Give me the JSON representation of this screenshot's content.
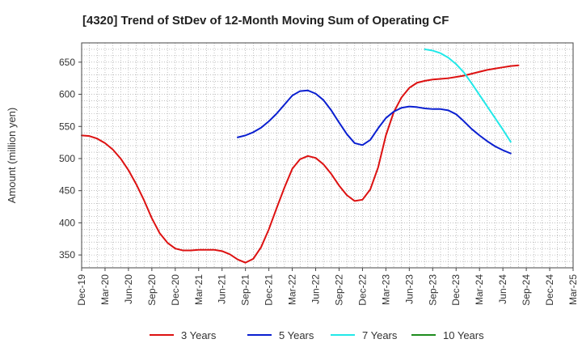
{
  "chart_data": {
    "type": "line",
    "title": "[4320]  Trend of StDev of 12-Month Moving Sum of Operating CF",
    "xlabel": "",
    "ylabel": "Amount (million yen)",
    "ylim": [
      330,
      680
    ],
    "yticks": [
      350,
      400,
      450,
      500,
      550,
      600,
      650
    ],
    "x_range": [
      "2019-12",
      "2025-03"
    ],
    "xticks": [
      "Dec-19",
      "Mar-20",
      "Jun-20",
      "Sep-20",
      "Dec-20",
      "Mar-21",
      "Jun-21",
      "Sep-21",
      "Dec-21",
      "Mar-22",
      "Jun-22",
      "Sep-22",
      "Dec-22",
      "Mar-23",
      "Jun-23",
      "Sep-23",
      "Dec-23",
      "Mar-24",
      "Jun-24",
      "Sep-24",
      "Dec-24",
      "Mar-25"
    ],
    "grid": true,
    "legend_position": "bottom",
    "series": [
      {
        "name": "3 Years",
        "color": "#dd1111",
        "start": "2019-12",
        "values": [
          536,
          535,
          531,
          524,
          514,
          500,
          482,
          460,
          435,
          407,
          384,
          369,
          360,
          357,
          357,
          358,
          358,
          358,
          356,
          351,
          343,
          338,
          344,
          362,
          390,
          423,
          455,
          484,
          499,
          504,
          501,
          491,
          476,
          458,
          443,
          434,
          436,
          452,
          486,
          536,
          572,
          595,
          610,
          618,
          621,
          623,
          624,
          625,
          627,
          629,
          632,
          635,
          638,
          640,
          642,
          644,
          645
        ]
      },
      {
        "name": "5 Years",
        "color": "#0a1fd0",
        "start": "2021-08",
        "values": [
          533,
          536,
          541,
          548,
          558,
          570,
          584,
          598,
          605,
          606,
          601,
          591,
          575,
          556,
          538,
          524,
          521,
          529,
          547,
          563,
          573,
          579,
          581,
          580,
          578,
          577,
          577,
          575,
          569,
          558,
          546,
          536,
          527,
          519,
          513,
          508
        ]
      },
      {
        "name": "7 Years",
        "color": "#22e8e8",
        "start": "2023-08",
        "values": [
          670,
          668,
          664,
          657,
          647,
          634,
          617,
          599,
          581,
          563,
          545,
          526
        ]
      },
      {
        "name": "10 Years",
        "color": "#1e8c1e",
        "start": "2023-08",
        "values": []
      }
    ]
  }
}
